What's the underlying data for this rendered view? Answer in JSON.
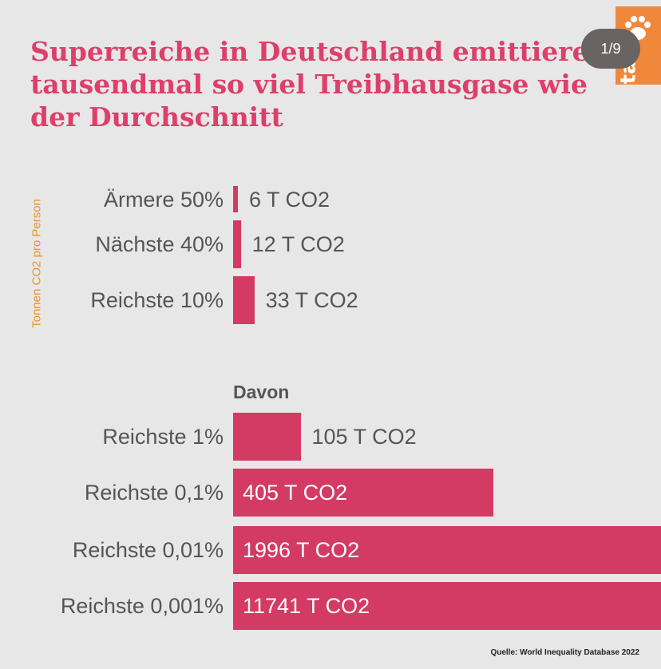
{
  "title": "Superreiche in Deutschland emittieren tausendmal so viel Treibhausgase wie der Durchschnitt",
  "page_indicator": "1/9",
  "logo_text": "taz",
  "source": "Quelle: World Inequality Database 2022",
  "colors": {
    "bar": "#d33a64",
    "title": "#dd3f6b",
    "ylabel": "#e8942b",
    "logo": "#f0883c"
  },
  "chart_data": {
    "type": "bar",
    "orientation": "horizontal",
    "ylabel": "Tonnen CO2 pro Person",
    "groups": [
      {
        "label": "",
        "categories": [
          "Ärmere 50%",
          "Nächste 40%",
          "Reichste 10%"
        ],
        "values": [
          6,
          12,
          33
        ],
        "value_labels": [
          "6 T CO2",
          "12 T CO2",
          "33 T CO2"
        ]
      },
      {
        "label": "Davon",
        "categories": [
          "Reichste 1%",
          "Reichste 0,1%",
          "Reichste 0,01%",
          "Reichste 0,001%"
        ],
        "values": [
          105,
          405,
          1996,
          11741
        ],
        "value_labels": [
          "105 T CO2",
          "405 T CO2",
          "1996 T CO2",
          "11741 T CO2"
        ]
      }
    ],
    "grid": false
  }
}
